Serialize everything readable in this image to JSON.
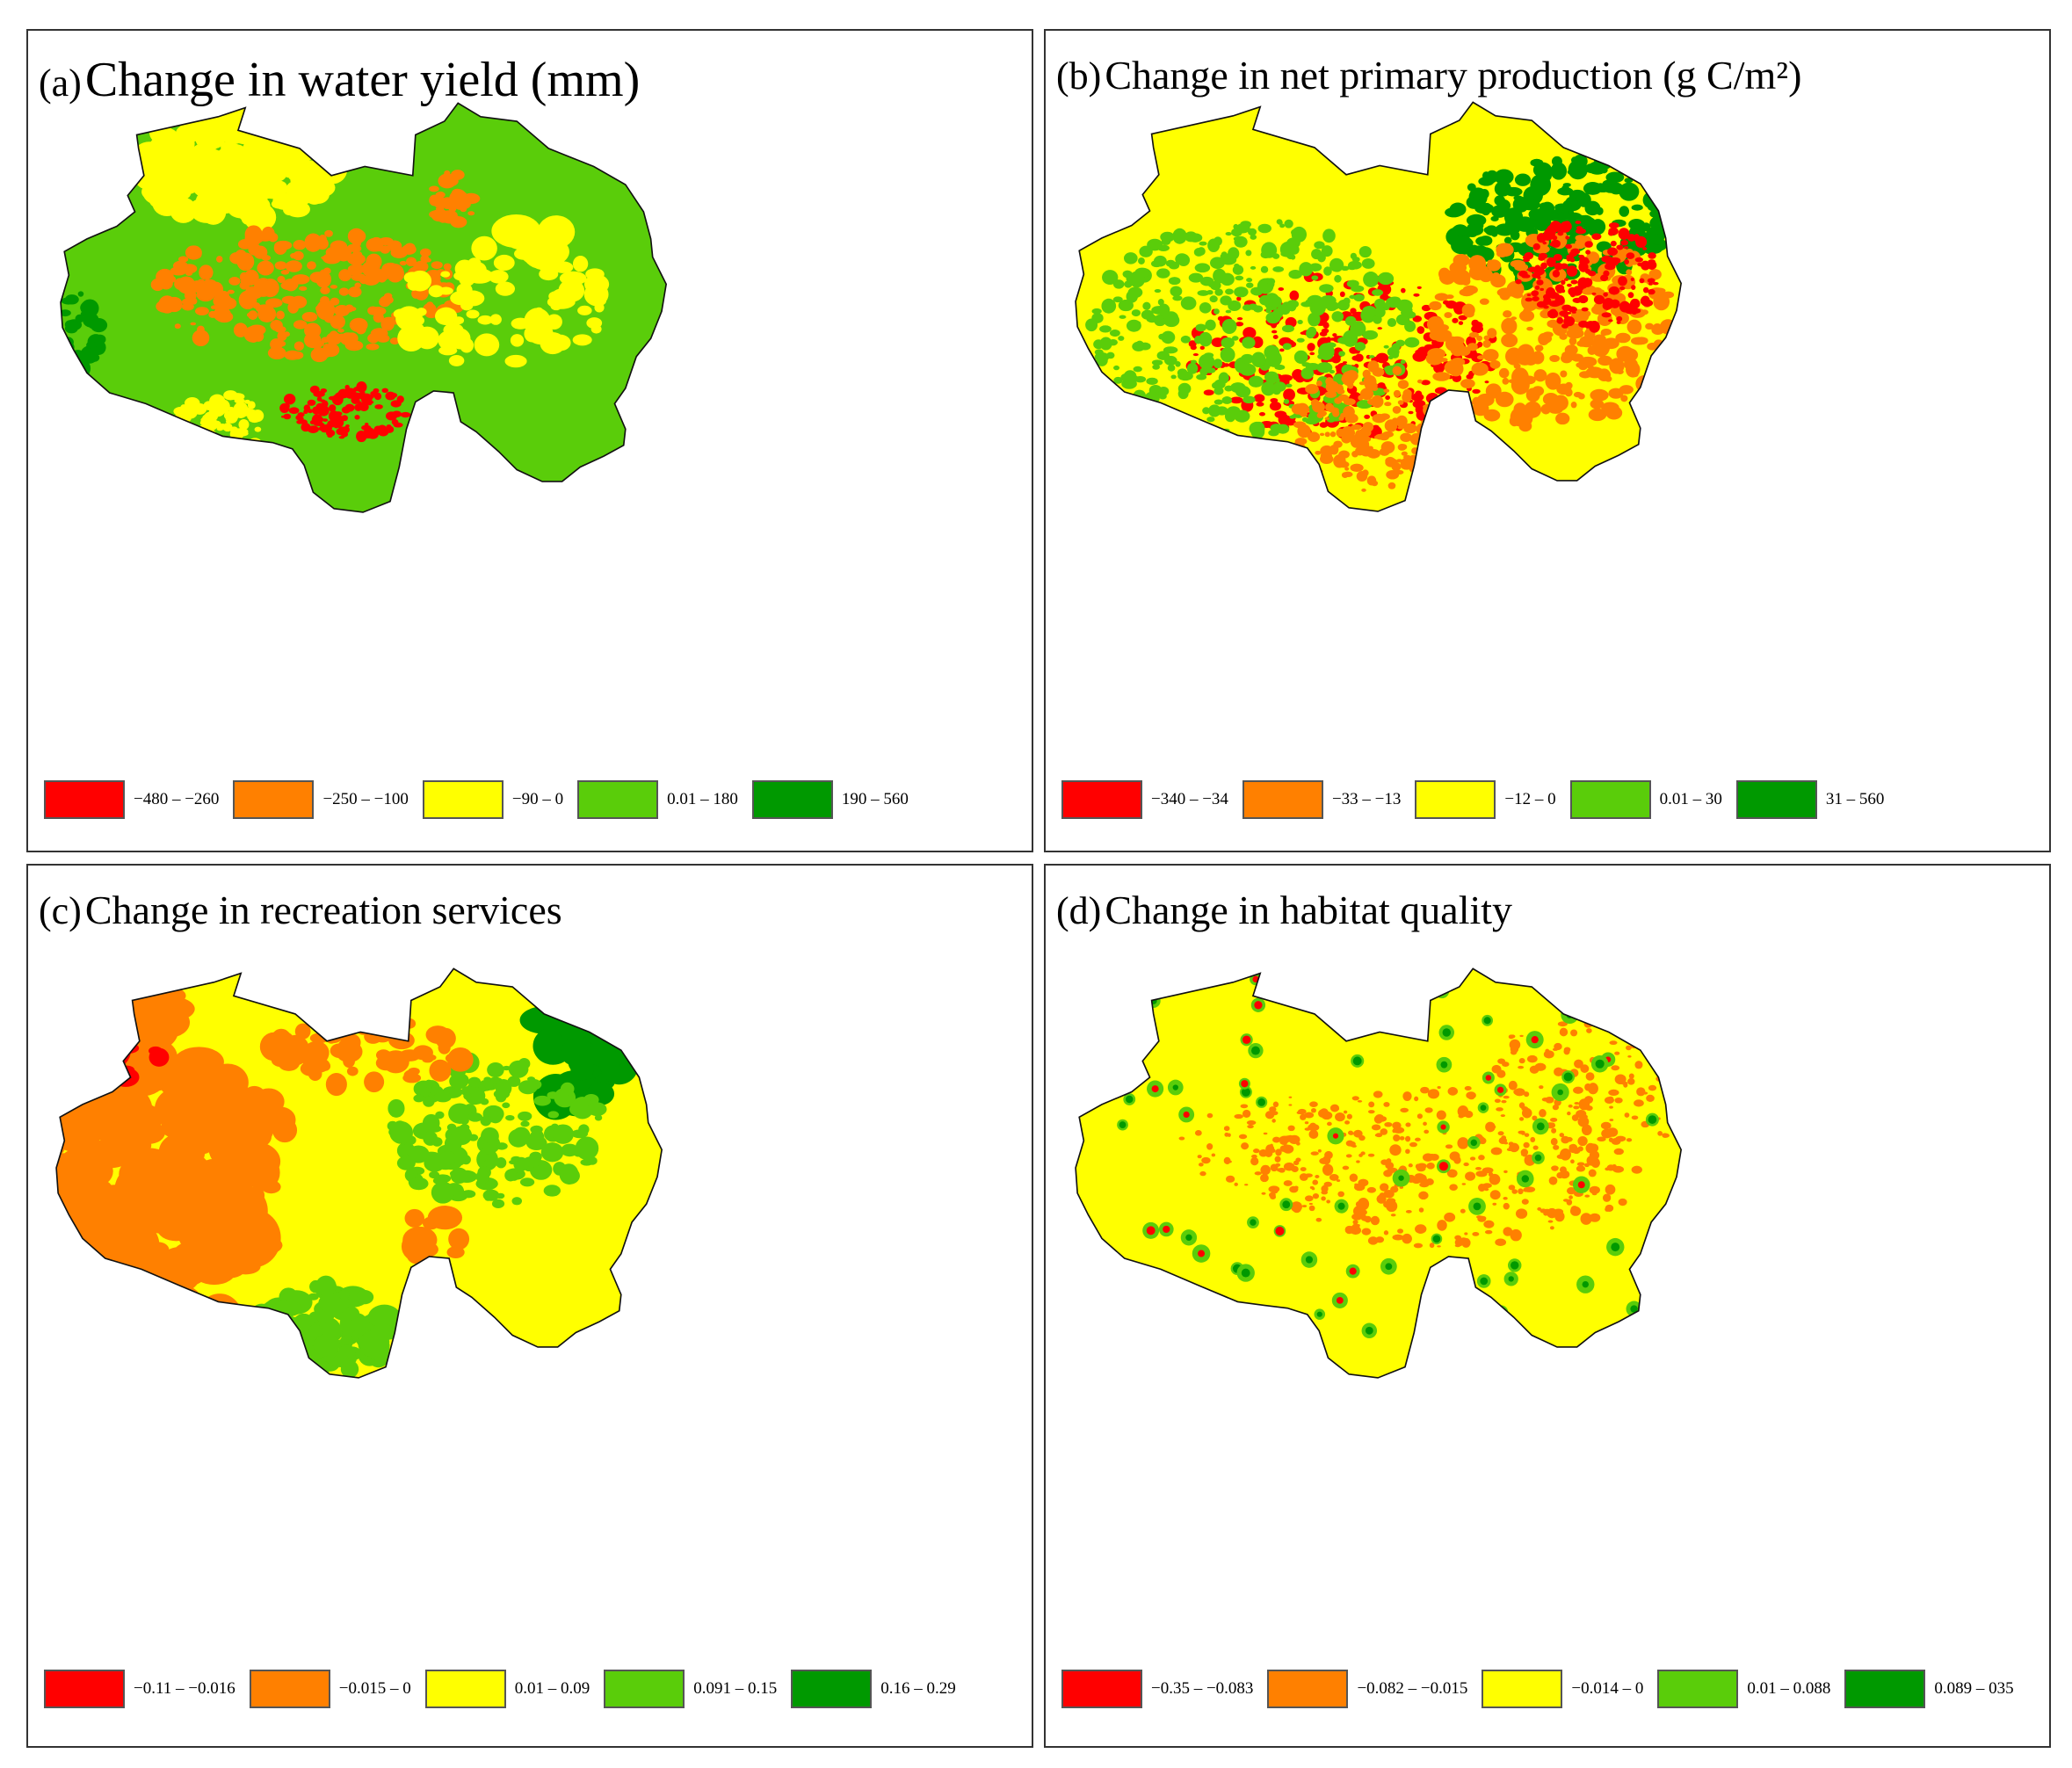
{
  "colors": {
    "red": "#ff0000",
    "orange": "#ff8000",
    "yellow": "#ffff00",
    "lightgreen": "#5acd0a",
    "darkgreen": "#009900",
    "outline": "#111111"
  },
  "panels": [
    {
      "id": "a",
      "label": "(a)",
      "title": "Change in water yield (mm)",
      "base_color": "#5acd0a",
      "legend": [
        {
          "range": "−480 – −260",
          "color": "#ff0000"
        },
        {
          "range": "−250 – −100",
          "color": "#ff8000"
        },
        {
          "range": "−90 – 0",
          "color": "#ffff00"
        },
        {
          "range": "0.01 – 180",
          "color": "#5acd0a"
        },
        {
          "range": "190 – 560",
          "color": "#009900"
        }
      ]
    },
    {
      "id": "b",
      "label": "(b)",
      "title": "Change in net primary production (g C/m²)",
      "base_color": "#ffff00",
      "legend": [
        {
          "range": "−340 – −34",
          "color": "#ff0000"
        },
        {
          "range": "−33 – −13",
          "color": "#ff8000"
        },
        {
          "range": "−12 – 0",
          "color": "#ffff00"
        },
        {
          "range": "0.01 – 30",
          "color": "#5acd0a"
        },
        {
          "range": "31 – 560",
          "color": "#009900"
        }
      ]
    },
    {
      "id": "c",
      "label": "(c)",
      "title": "Change in recreation services",
      "base_color": "#ffff00",
      "legend": [
        {
          "range": "−0.11 – −0.016",
          "color": "#ff0000"
        },
        {
          "range": "−0.015 – 0",
          "color": "#ff8000"
        },
        {
          "range": "0.01 – 0.09",
          "color": "#ffff00"
        },
        {
          "range": "0.091 – 0.15",
          "color": "#5acd0a"
        },
        {
          "range": "0.16 – 0.29",
          "color": "#009900"
        }
      ]
    },
    {
      "id": "d",
      "label": "(d)",
      "title": "Change in habitat quality",
      "base_color": "#ffff00",
      "legend": [
        {
          "range": "−0.35 – −0.083",
          "color": "#ff0000"
        },
        {
          "range": "−0.082 – −0.015",
          "color": "#ff8000"
        },
        {
          "range": "−0.014 – 0",
          "color": "#ffff00"
        },
        {
          "range": "0.01 – 0.088",
          "color": "#5acd0a"
        },
        {
          "range": "0.089 – 035",
          "color": "#009900"
        }
      ]
    }
  ]
}
